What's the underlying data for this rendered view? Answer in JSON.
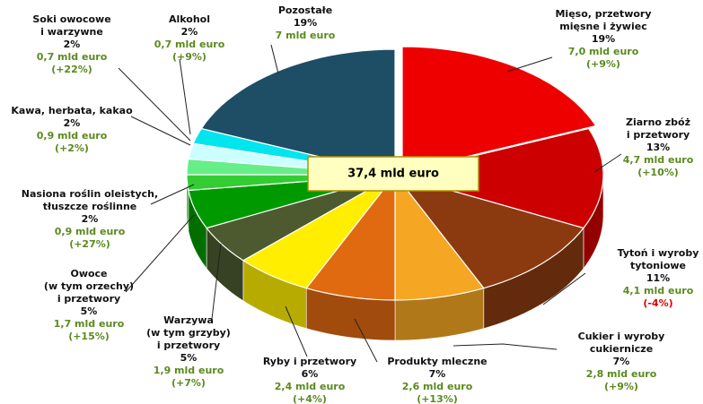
{
  "chart_data": {
    "type": "pie",
    "total_label": "37,4 mld euro",
    "categories": [
      [
        "Mięso, przetwory",
        "mięsne i żywiec"
      ],
      [
        "Ziarno zbóż",
        "i przetwory"
      ],
      [
        "Tytoń i wyroby",
        "tytoniowe"
      ],
      [
        "Cukier i wyroby",
        "cukiernicze"
      ],
      [
        "Produkty mleczne"
      ],
      [
        "Ryby i przetwory"
      ],
      [
        "Warzywa",
        "(w tym grzyby)",
        "i przetwory"
      ],
      [
        "Owoce",
        "(w tym orzechy)",
        "i przetwory"
      ],
      [
        "Nasiona roślin oleistych,",
        "tłuszcze roślinne"
      ],
      [
        "Kawa, herbata, kakao"
      ],
      [
        "Soki owocowe",
        "i warzywne"
      ],
      [
        "Alkohol"
      ],
      [
        "Pozostałe"
      ]
    ],
    "values": [
      19,
      13,
      11,
      7,
      7,
      6,
      5,
      5,
      2,
      2,
      2,
      2,
      19
    ],
    "value_labels": [
      "19%",
      "13%",
      "11%",
      "7%",
      "7%",
      "6%",
      "5%",
      "5%",
      "2%",
      "2%",
      "2%",
      "2%",
      "19%"
    ],
    "amounts": [
      "7,0 mld euro",
      "4,7 mld euro",
      "4,1 mld euro",
      "2,8 mld euro",
      "2,6 mld euro",
      "2,4 mld euro",
      "1,9 mld euro",
      "1,7 mld euro",
      "0,9 mld euro",
      "0,9 mld euro",
      "0,7 mld euro",
      "0,7 mld euro",
      "7 mld euro"
    ],
    "changes": [
      "(+9%)",
      "(+10%)",
      "(-4%)",
      "(+9%)",
      "(+13%)",
      "(+4%)",
      "(+7%)",
      "(+15%)",
      "(+27%)",
      "(+2%)",
      "(+22%)",
      "(+9%)",
      null
    ],
    "colors": [
      "#ee0000",
      "#cc0000",
      "#8b3a10",
      "#f5a623",
      "#e06a10",
      "#ffee00",
      "#4d5a30",
      "#009a00",
      "#33cc33",
      "#66ee88",
      "#ccffff",
      "#00e5ee",
      "#1e4d66"
    ]
  }
}
